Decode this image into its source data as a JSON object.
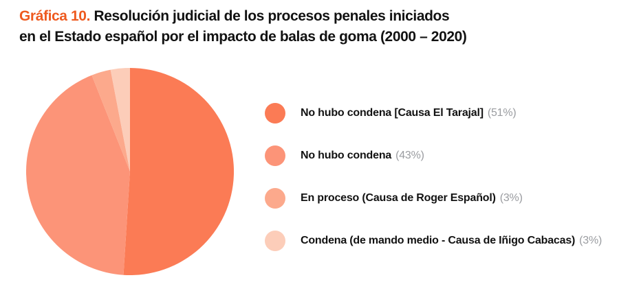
{
  "title": {
    "accent": "Gráfica 10.",
    "line1": "Resolución judicial de los procesos penales iniciados",
    "line2": "en el Estado español por el impacto de balas de goma (2000 – 2020)"
  },
  "colors": {
    "accent": "#EE5A1F",
    "text": "#121212",
    "pct_gray": "#9A9CA0",
    "background": "#FFFFFF"
  },
  "legend": {
    "items": [
      {
        "label": "No hubo condena [Causa El Tarajal]",
        "pct": "(51%)"
      },
      {
        "label": "No hubo condena",
        "pct": "(43%)"
      },
      {
        "label": "En proceso (Causa de Roger Español)",
        "pct": "(3%)"
      },
      {
        "label": "Condena (de mando medio - Causa de Iñigo Cabacas)",
        "pct": "(3%)"
      }
    ]
  },
  "chart_data": {
    "type": "pie",
    "title": "Gráfica 10. Resolución judicial de los procesos penales iniciados en el Estado español por el impacto de balas de goma (2000 – 2020)",
    "labels": [
      "No hubo condena [Causa El Tarajal]",
      "No hubo condena",
      "En proceso (Causa de Roger Español)",
      "Condena (de mando medio - Causa de Iñigo Cabacas)"
    ],
    "values": [
      51,
      43,
      3,
      3
    ],
    "unit": "%",
    "colors": [
      "#FB7B55",
      "#FC9478",
      "#FCA98C",
      "#FCCDB9"
    ],
    "start_angle_deg": 0,
    "direction": "clockwise",
    "legend_position": "right"
  }
}
